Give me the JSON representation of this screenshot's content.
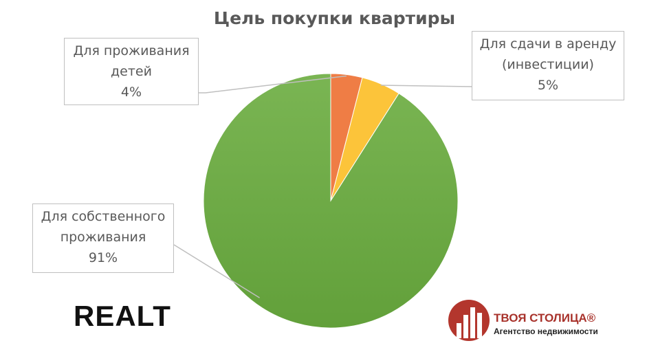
{
  "chart_data": {
    "type": "pie",
    "title": "Цель покупки квартиры",
    "categories": [
      "Для проживания детей",
      "Для сдачи в аренду (инвестиции)",
      "Для собственного проживания"
    ],
    "values": [
      4,
      5,
      91
    ],
    "value_labels": [
      "4%",
      "5%",
      "91%"
    ],
    "colors": [
      "#ef7d45",
      "#fcc43a",
      "#72ae48"
    ]
  },
  "logos": {
    "left": "REALT",
    "right": {
      "name": "ТВОЯ СТОЛИЦА®",
      "tagline": "Агентство недвижимости"
    }
  }
}
